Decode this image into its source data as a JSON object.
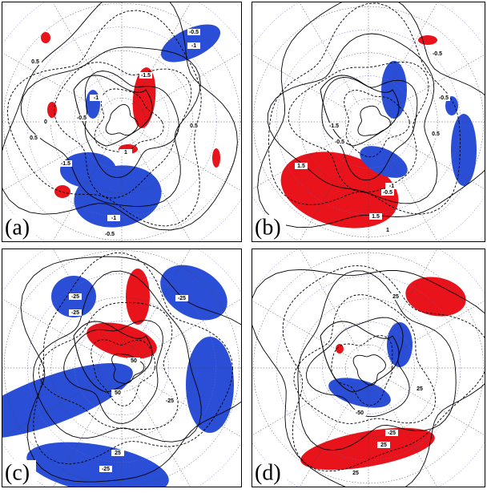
{
  "panels": [
    {
      "label": "(a)",
      "contour_labels": [
        "-0.5",
        "-1",
        "0.5",
        "-1.5",
        "-1",
        "-0.5",
        "0",
        "0.5",
        "-1.5",
        "-1",
        "-0.5",
        "1",
        "0.5"
      ]
    },
    {
      "label": "(b)",
      "contour_labels": [
        "-1.5",
        "-0.5",
        "1.5",
        "1.5",
        "1",
        "-1",
        "-0.5",
        "0.5",
        "-0.5",
        "-0.5"
      ]
    },
    {
      "label": "(c)",
      "contour_labels": [
        "-25",
        "-25",
        "50",
        "50",
        "-25",
        "-25",
        "-25",
        "25"
      ]
    },
    {
      "label": "(d)",
      "contour_labels": [
        "25",
        "-50",
        "25",
        "25",
        "-25",
        "25"
      ]
    }
  ]
}
